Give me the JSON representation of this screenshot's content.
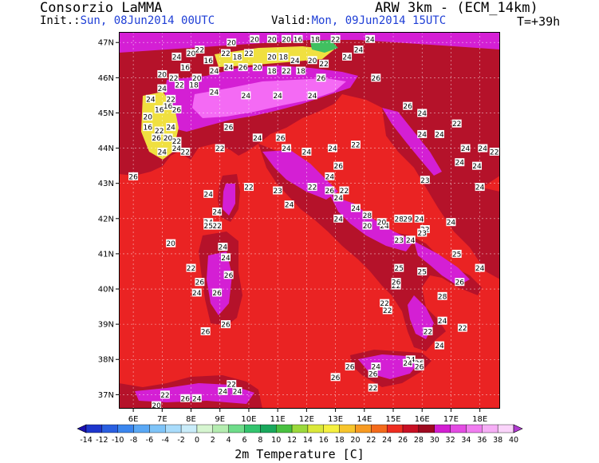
{
  "header": {
    "org": "Consorzio LaMMA",
    "init_label": "Init.:",
    "init_value": "Sun, 08Jun2014 00UTC",
    "valid_label": "Valid:",
    "valid_value": "Mon, 09Jun2014 15UTC",
    "model": "ARW 3km - (ECM_14km)",
    "step": "T=+39h"
  },
  "map": {
    "lon_range": [
      5.5,
      18.7
    ],
    "lat_range": [
      36.6,
      47.3
    ],
    "lon_ticks": [
      "6E",
      "7E",
      "8E",
      "9E",
      "10E",
      "11E",
      "12E",
      "13E",
      "14E",
      "15E",
      "16E",
      "17E",
      "18E"
    ],
    "lat_ticks": [
      "37N",
      "38N",
      "39N",
      "40N",
      "41N",
      "42N",
      "43N",
      "44N",
      "45N",
      "46N",
      "47N"
    ],
    "colors": {
      "sea": "#ea2323",
      "land_warm": "#b5122a",
      "hot": "#d41fd4",
      "very_hot": "#f46af4",
      "alpine": "#f0e040",
      "border": "#8a7ab8"
    },
    "station_labels": [
      {
        "lon": 9.4,
        "lat": 47.0,
        "t": "20"
      },
      {
        "lon": 10.2,
        "lat": 47.1,
        "t": "20"
      },
      {
        "lon": 10.8,
        "lat": 47.1,
        "t": "20"
      },
      {
        "lon": 11.3,
        "lat": 47.1,
        "t": "20"
      },
      {
        "lon": 11.7,
        "lat": 47.1,
        "t": "16"
      },
      {
        "lon": 12.3,
        "lat": 47.1,
        "t": "18"
      },
      {
        "lon": 13.0,
        "lat": 47.1,
        "t": "22"
      },
      {
        "lon": 14.2,
        "lat": 47.1,
        "t": "24"
      },
      {
        "lon": 7.5,
        "lat": 46.6,
        "t": "24"
      },
      {
        "lon": 8.0,
        "lat": 46.7,
        "t": "20"
      },
      {
        "lon": 8.3,
        "lat": 46.8,
        "t": "22"
      },
      {
        "lon": 8.6,
        "lat": 46.5,
        "t": "16"
      },
      {
        "lon": 9.2,
        "lat": 46.7,
        "t": "22"
      },
      {
        "lon": 9.6,
        "lat": 46.6,
        "t": "18"
      },
      {
        "lon": 10.0,
        "lat": 46.7,
        "t": "22"
      },
      {
        "lon": 10.8,
        "lat": 46.6,
        "t": "20"
      },
      {
        "lon": 11.2,
        "lat": 46.6,
        "t": "18"
      },
      {
        "lon": 11.6,
        "lat": 46.5,
        "t": "24"
      },
      {
        "lon": 12.2,
        "lat": 46.5,
        "t": "20"
      },
      {
        "lon": 12.6,
        "lat": 46.4,
        "t": "22"
      },
      {
        "lon": 13.4,
        "lat": 46.6,
        "t": "24"
      },
      {
        "lon": 13.8,
        "lat": 46.8,
        "t": "24"
      },
      {
        "lon": 7.0,
        "lat": 46.1,
        "t": "20"
      },
      {
        "lon": 7.4,
        "lat": 46.0,
        "t": "22"
      },
      {
        "lon": 7.8,
        "lat": 46.3,
        "t": "16"
      },
      {
        "lon": 8.2,
        "lat": 46.0,
        "t": "20"
      },
      {
        "lon": 8.8,
        "lat": 46.2,
        "t": "24"
      },
      {
        "lon": 9.3,
        "lat": 46.3,
        "t": "24"
      },
      {
        "lon": 9.8,
        "lat": 46.3,
        "t": "26"
      },
      {
        "lon": 10.3,
        "lat": 46.3,
        "t": "20"
      },
      {
        "lon": 10.8,
        "lat": 46.2,
        "t": "18"
      },
      {
        "lon": 11.3,
        "lat": 46.2,
        "t": "22"
      },
      {
        "lon": 11.8,
        "lat": 46.2,
        "t": "18"
      },
      {
        "lon": 12.5,
        "lat": 46.0,
        "t": "26"
      },
      {
        "lon": 14.4,
        "lat": 46.0,
        "t": "26"
      },
      {
        "lon": 7.6,
        "lat": 45.8,
        "t": "22"
      },
      {
        "lon": 8.1,
        "lat": 45.8,
        "t": "18"
      },
      {
        "lon": 8.8,
        "lat": 45.6,
        "t": "24"
      },
      {
        "lon": 9.9,
        "lat": 45.5,
        "t": "24"
      },
      {
        "lon": 11.0,
        "lat": 45.5,
        "t": "24"
      },
      {
        "lon": 12.2,
        "lat": 45.5,
        "t": "24"
      },
      {
        "lon": 6.6,
        "lat": 45.4,
        "t": "24"
      },
      {
        "lon": 7.0,
        "lat": 45.7,
        "t": "24"
      },
      {
        "lon": 7.3,
        "lat": 45.4,
        "t": "22"
      },
      {
        "lon": 6.9,
        "lat": 45.1,
        "t": "16"
      },
      {
        "lon": 7.2,
        "lat": 45.2,
        "t": "16"
      },
      {
        "lon": 7.5,
        "lat": 45.1,
        "t": "26"
      },
      {
        "lon": 6.5,
        "lat": 44.9,
        "t": "20"
      },
      {
        "lon": 6.5,
        "lat": 44.6,
        "t": "16"
      },
      {
        "lon": 6.9,
        "lat": 44.5,
        "t": "22"
      },
      {
        "lon": 7.3,
        "lat": 44.6,
        "t": "24"
      },
      {
        "lon": 6.8,
        "lat": 44.3,
        "t": "26"
      },
      {
        "lon": 7.2,
        "lat": 44.3,
        "t": "20"
      },
      {
        "lon": 7.5,
        "lat": 44.2,
        "t": "22"
      },
      {
        "lon": 7.5,
        "lat": 44.0,
        "t": "24"
      },
      {
        "lon": 7.8,
        "lat": 43.9,
        "t": "22"
      },
      {
        "lon": 7.0,
        "lat": 43.9,
        "t": "24"
      },
      {
        "lon": 9.3,
        "lat": 44.6,
        "t": "26"
      },
      {
        "lon": 9.0,
        "lat": 44.0,
        "t": "22"
      },
      {
        "lon": 10.3,
        "lat": 44.3,
        "t": "24"
      },
      {
        "lon": 11.1,
        "lat": 44.3,
        "t": "26"
      },
      {
        "lon": 11.3,
        "lat": 44.0,
        "t": "24"
      },
      {
        "lon": 12.0,
        "lat": 43.9,
        "t": "24"
      },
      {
        "lon": 12.9,
        "lat": 44.0,
        "t": "24"
      },
      {
        "lon": 13.7,
        "lat": 44.1,
        "t": "22"
      },
      {
        "lon": 15.5,
        "lat": 45.2,
        "t": "26"
      },
      {
        "lon": 16.0,
        "lat": 45.0,
        "t": "24"
      },
      {
        "lon": 17.2,
        "lat": 44.7,
        "t": "22"
      },
      {
        "lon": 16.0,
        "lat": 44.4,
        "t": "24"
      },
      {
        "lon": 16.6,
        "lat": 44.4,
        "t": "24"
      },
      {
        "lon": 17.5,
        "lat": 44.0,
        "t": "24"
      },
      {
        "lon": 18.1,
        "lat": 44.0,
        "t": "24"
      },
      {
        "lon": 18.5,
        "lat": 43.9,
        "t": "22"
      },
      {
        "lon": 17.3,
        "lat": 43.6,
        "t": "24"
      },
      {
        "lon": 17.9,
        "lat": 43.5,
        "t": "24"
      },
      {
        "lon": 16.1,
        "lat": 43.1,
        "t": "23"
      },
      {
        "lon": 18.0,
        "lat": 42.9,
        "t": "24"
      },
      {
        "lon": 6.0,
        "lat": 43.2,
        "t": "26"
      },
      {
        "lon": 13.1,
        "lat": 43.5,
        "t": "26"
      },
      {
        "lon": 12.8,
        "lat": 43.2,
        "t": "24"
      },
      {
        "lon": 12.2,
        "lat": 42.9,
        "t": "22"
      },
      {
        "lon": 10.0,
        "lat": 42.9,
        "t": "22"
      },
      {
        "lon": 11.0,
        "lat": 42.8,
        "t": "23"
      },
      {
        "lon": 12.8,
        "lat": 42.8,
        "t": "26"
      },
      {
        "lon": 13.3,
        "lat": 42.8,
        "t": "22"
      },
      {
        "lon": 13.1,
        "lat": 42.6,
        "t": "24"
      },
      {
        "lon": 8.6,
        "lat": 42.7,
        "t": "24"
      },
      {
        "lon": 8.9,
        "lat": 42.2,
        "t": "24"
      },
      {
        "lon": 8.6,
        "lat": 41.9,
        "t": "24"
      },
      {
        "lon": 8.9,
        "lat": 41.8,
        "t": "22"
      },
      {
        "lon": 8.6,
        "lat": 41.8,
        "t": "25"
      },
      {
        "lon": 11.4,
        "lat": 42.4,
        "t": "24"
      },
      {
        "lon": 13.7,
        "lat": 42.3,
        "t": "24"
      },
      {
        "lon": 14.1,
        "lat": 42.1,
        "t": "28"
      },
      {
        "lon": 13.1,
        "lat": 42.0,
        "t": "24"
      },
      {
        "lon": 14.7,
        "lat": 41.8,
        "t": "24"
      },
      {
        "lon": 14.1,
        "lat": 41.8,
        "t": "20"
      },
      {
        "lon": 14.6,
        "lat": 41.9,
        "t": "20"
      },
      {
        "lon": 15.2,
        "lat": 42.0,
        "t": "28"
      },
      {
        "lon": 15.5,
        "lat": 42.0,
        "t": "29"
      },
      {
        "lon": 15.9,
        "lat": 42.0,
        "t": "24"
      },
      {
        "lon": 16.1,
        "lat": 41.7,
        "t": "22"
      },
      {
        "lon": 17.0,
        "lat": 41.9,
        "t": "24"
      },
      {
        "lon": 15.2,
        "lat": 41.4,
        "t": "23"
      },
      {
        "lon": 15.6,
        "lat": 41.4,
        "t": "24"
      },
      {
        "lon": 16.0,
        "lat": 41.6,
        "t": "23"
      },
      {
        "lon": 9.1,
        "lat": 41.2,
        "t": "24"
      },
      {
        "lon": 9.2,
        "lat": 40.9,
        "t": "24"
      },
      {
        "lon": 9.3,
        "lat": 40.4,
        "t": "26"
      },
      {
        "lon": 7.3,
        "lat": 41.3,
        "t": "20"
      },
      {
        "lon": 8.0,
        "lat": 40.6,
        "t": "22"
      },
      {
        "lon": 8.3,
        "lat": 40.2,
        "t": "26"
      },
      {
        "lon": 8.2,
        "lat": 39.9,
        "t": "24"
      },
      {
        "lon": 8.9,
        "lat": 39.9,
        "t": "26"
      },
      {
        "lon": 15.2,
        "lat": 40.6,
        "t": "25"
      },
      {
        "lon": 16.0,
        "lat": 40.5,
        "t": "25"
      },
      {
        "lon": 17.2,
        "lat": 41.0,
        "t": "25"
      },
      {
        "lon": 18.0,
        "lat": 40.6,
        "t": "24"
      },
      {
        "lon": 17.3,
        "lat": 40.2,
        "t": "26"
      },
      {
        "lon": 15.1,
        "lat": 40.1,
        "t": "22"
      },
      {
        "lon": 15.1,
        "lat": 40.2,
        "t": "26"
      },
      {
        "lon": 16.7,
        "lat": 39.8,
        "t": "28"
      },
      {
        "lon": 14.7,
        "lat": 39.6,
        "t": "22"
      },
      {
        "lon": 14.8,
        "lat": 39.4,
        "t": "22"
      },
      {
        "lon": 16.7,
        "lat": 39.1,
        "t": "24"
      },
      {
        "lon": 17.4,
        "lat": 38.9,
        "t": "22"
      },
      {
        "lon": 9.2,
        "lat": 39.0,
        "t": "26"
      },
      {
        "lon": 8.5,
        "lat": 38.8,
        "t": "26"
      },
      {
        "lon": 16.2,
        "lat": 38.8,
        "t": "22"
      },
      {
        "lon": 16.6,
        "lat": 38.4,
        "t": "24"
      },
      {
        "lon": 15.6,
        "lat": 38.0,
        "t": "24"
      },
      {
        "lon": 15.9,
        "lat": 37.9,
        "t": "26"
      },
      {
        "lon": 15.5,
        "lat": 37.9,
        "t": "24"
      },
      {
        "lon": 15.9,
        "lat": 37.8,
        "t": "26"
      },
      {
        "lon": 13.5,
        "lat": 37.8,
        "t": "26"
      },
      {
        "lon": 14.4,
        "lat": 37.8,
        "t": "24"
      },
      {
        "lon": 14.3,
        "lat": 37.6,
        "t": "26"
      },
      {
        "lon": 13.0,
        "lat": 37.5,
        "t": "26"
      },
      {
        "lon": 14.3,
        "lat": 37.2,
        "t": "22"
      },
      {
        "lon": 9.4,
        "lat": 37.3,
        "t": "22"
      },
      {
        "lon": 7.1,
        "lat": 37.0,
        "t": "22"
      },
      {
        "lon": 7.8,
        "lat": 36.9,
        "t": "26"
      },
      {
        "lon": 8.2,
        "lat": 36.9,
        "t": "24"
      },
      {
        "lon": 9.1,
        "lat": 37.1,
        "t": "24"
      },
      {
        "lon": 9.6,
        "lat": 37.1,
        "t": "24"
      },
      {
        "lon": 6.8,
        "lat": 36.7,
        "t": "20"
      }
    ]
  },
  "colorbar": {
    "ticks": [
      "-14",
      "-12",
      "-10",
      "-8",
      "-6",
      "-4",
      "-2",
      "0",
      "2",
      "4",
      "6",
      "8",
      "10",
      "12",
      "14",
      "16",
      "18",
      "20",
      "22",
      "24",
      "26",
      "28",
      "30",
      "32",
      "34",
      "36",
      "38",
      "40"
    ],
    "colors": [
      "#1a0fb0",
      "#1e36cc",
      "#2a5fe0",
      "#3b86ee",
      "#5aa8f5",
      "#7fc4f8",
      "#a9dcfb",
      "#c9ecf9",
      "#d6f5d0",
      "#b4ecb0",
      "#6fdc8a",
      "#33c46e",
      "#19a85c",
      "#48c040",
      "#9bd93c",
      "#dbe83a",
      "#f5f040",
      "#f7c52c",
      "#f79a22",
      "#f46b1c",
      "#ee2d20",
      "#c81024",
      "#9e0a20",
      "#d21fd2",
      "#e34ce3",
      "#f07ef0",
      "#f6aef6",
      "#fad4fa",
      "#b03ad0"
    ],
    "title": "2m Temperature [C]"
  }
}
